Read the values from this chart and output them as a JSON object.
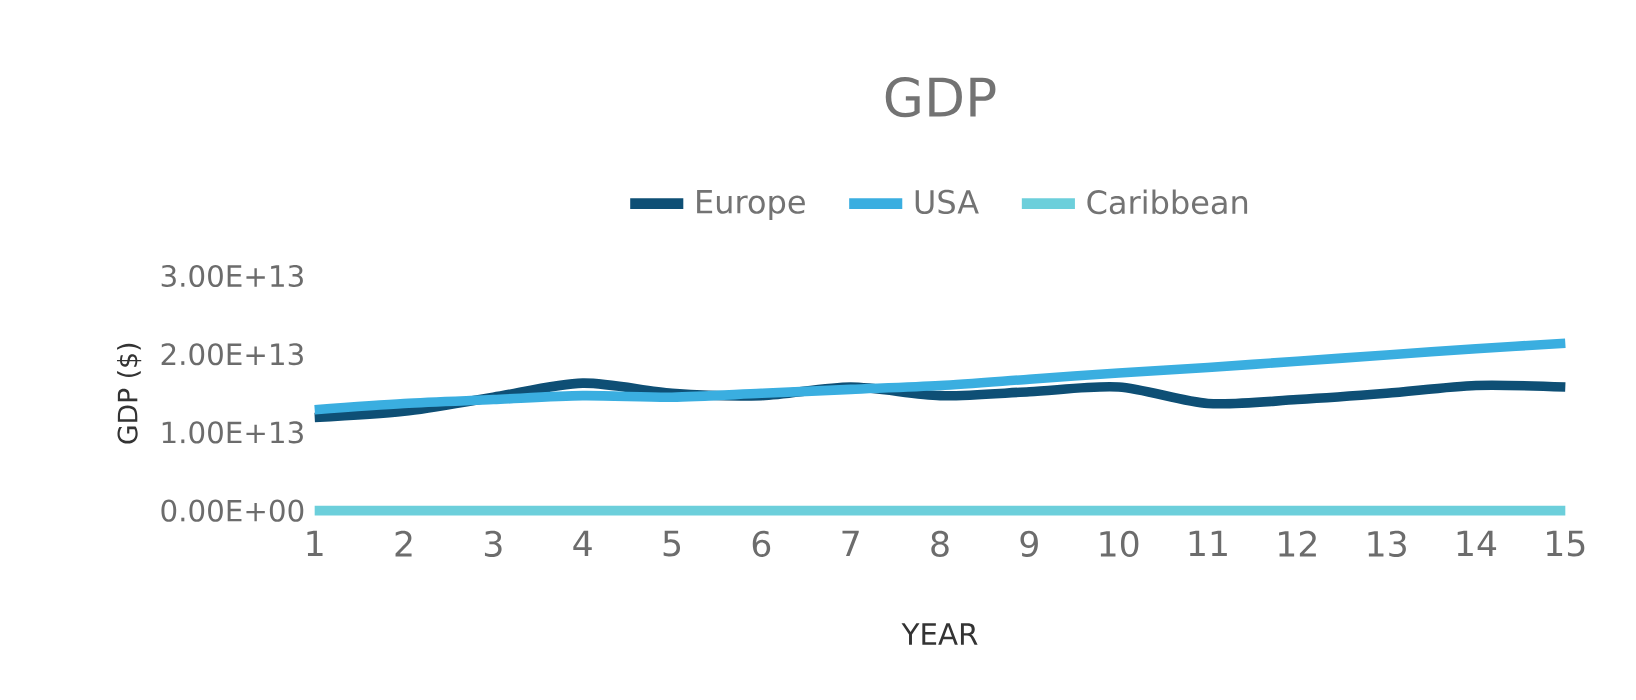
{
  "chart_data": {
    "type": "line",
    "title": "GDP",
    "xlabel": "YEAR",
    "ylabel": "GDP ($)",
    "x": [
      1,
      2,
      3,
      4,
      5,
      6,
      7,
      8,
      9,
      10,
      11,
      12,
      13,
      14,
      15
    ],
    "xlim": [
      1,
      15
    ],
    "xticks": [
      1,
      2,
      3,
      4,
      5,
      6,
      7,
      8,
      9,
      10,
      11,
      12,
      13,
      14,
      15
    ],
    "ylim": [
      0,
      30000000000000
    ],
    "yticks": [
      {
        "value": 0,
        "label": "0.00E+00"
      },
      {
        "value": 10000000000000,
        "label": "1.00E+13"
      },
      {
        "value": 20000000000000,
        "label": "2.00E+13"
      },
      {
        "value": 30000000000000,
        "label": "3.00E+13"
      }
    ],
    "grid": false,
    "legend": "top",
    "marker": "none",
    "line_style": "solid",
    "series": [
      {
        "name": "Europe",
        "color": "#0e4f75",
        "values": [
          11900000000000,
          12700000000000,
          14500000000000,
          16300000000000,
          15000000000000,
          14700000000000,
          15800000000000,
          14700000000000,
          15200000000000,
          15800000000000,
          13700000000000,
          14200000000000,
          15000000000000,
          16000000000000,
          15800000000000
        ]
      },
      {
        "name": "USA",
        "color": "#3aaee0",
        "values": [
          12900000000000,
          13700000000000,
          14200000000000,
          14700000000000,
          14500000000000,
          15000000000000,
          15500000000000,
          16000000000000,
          16800000000000,
          17600000000000,
          18300000000000,
          19100000000000,
          19900000000000,
          20700000000000,
          21400000000000
        ]
      },
      {
        "name": "Caribbean",
        "color": "#6ccfdb",
        "values": [
          0,
          0,
          0,
          0,
          0,
          0,
          0,
          0,
          0,
          0,
          0,
          0,
          0,
          0,
          0
        ]
      }
    ]
  }
}
